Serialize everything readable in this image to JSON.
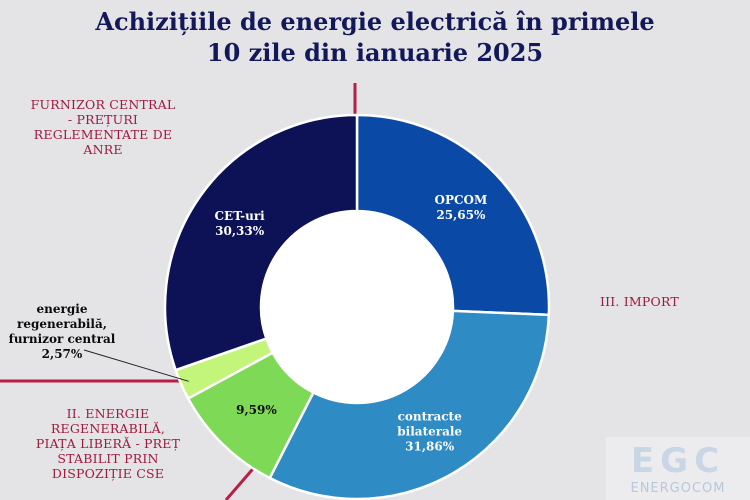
{
  "title": {
    "line1": "Achizițiile de energie electrică în primele",
    "line2": "10 zile din ianuarie 2025"
  },
  "annotations": {
    "furnizor_central": [
      "FURNIZOR CENTRAL",
      "- PREȚURI",
      "REGLEMENTATE DE",
      "ANRE"
    ],
    "import": "III. IMPORT",
    "energie_regenerabila": [
      "II. ENERGIE",
      "REGENERABILĂ,",
      "PIAȚA LIBERĂ - PREȚ",
      "STABILIT PRIN",
      "DISPOZIȚIE  CSE"
    ]
  },
  "watermark": {
    "logo": "EGC",
    "name": "ENERGOCOM"
  },
  "colors": {
    "background": "#e4e4e6",
    "title": "#13185a",
    "annotation": "#9e1a3c",
    "divider": "#b81f46",
    "opcom": "#0a4aa6",
    "contracte_bilaterale": "#2e8bc4",
    "green_9_59": "#7ed957",
    "regen_furnizor": "#c2f57a",
    "cet": "#0c1255"
  },
  "chart_data": {
    "type": "pie",
    "style": "donut",
    "slices": [
      {
        "label": "OPCOM",
        "value": 25.65,
        "display": "25,65%",
        "color": "#0a4aa6",
        "text_color": "#ffffff"
      },
      {
        "label": "contracte bilaterale",
        "value": 31.86,
        "display": "31,86%",
        "color": "#2e8bc4",
        "text_color": "#ffffff"
      },
      {
        "label": "",
        "value": 9.59,
        "display": "9,59%",
        "color": "#7ed957",
        "text_color": "#0a0a0a"
      },
      {
        "label": "energie regenerabilă, furnizor central",
        "value": 2.57,
        "display": "2,57%",
        "color": "#c2f57a",
        "text_color": "#0a0a0a"
      },
      {
        "label": "CET-uri",
        "value": 30.33,
        "display": "30,33%",
        "color": "#0c1255",
        "text_color": "#ffffff"
      }
    ]
  }
}
